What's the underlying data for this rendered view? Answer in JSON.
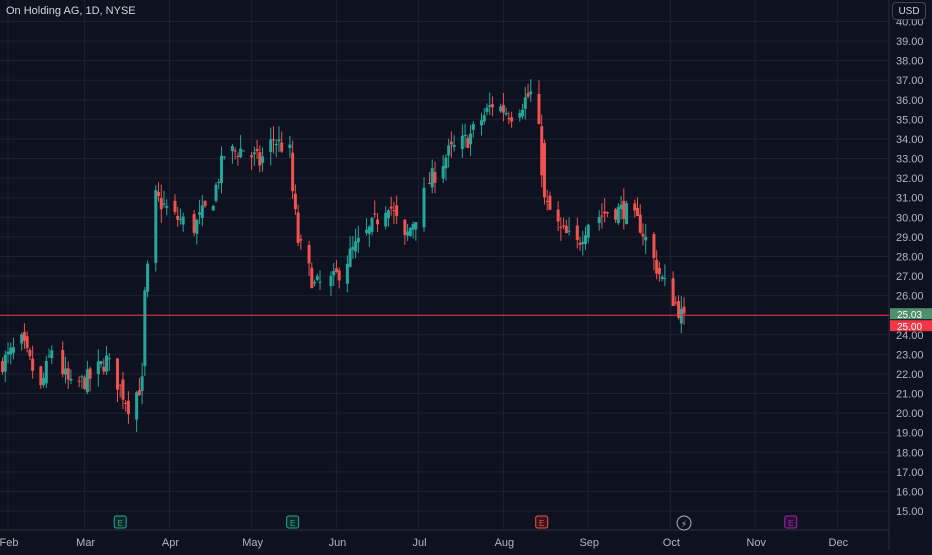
{
  "header": {
    "title": "On Holding AG, 1D, NYSE",
    "currency_button": "USD"
  },
  "chart_data": {
    "type": "candlestick",
    "title": "On Holding AG, 1D, NYSE",
    "currency": "USD",
    "ylim": [
      14.6,
      40.6
    ],
    "y_ticks": [
      "15.00",
      "16.00",
      "17.00",
      "18.00",
      "19.00",
      "20.00",
      "21.00",
      "22.00",
      "23.00",
      "24.00",
      "25.00",
      "26.00",
      "27.00",
      "28.00",
      "29.00",
      "30.00",
      "31.00",
      "32.00",
      "33.00",
      "34.00",
      "35.00",
      "36.00",
      "37.00",
      "38.00",
      "39.00",
      "40.00"
    ],
    "x_months": [
      "Feb",
      "Mar",
      "Apr",
      "May",
      "Jun",
      "Jul",
      "Aug",
      "Sep",
      "Oct",
      "Nov",
      "Dec"
    ],
    "price_lines": [
      {
        "label": "25.03",
        "value": 25.03,
        "color": "#4d8f6f"
      },
      {
        "label": "25.00",
        "value": 25.0,
        "color": "#f23645"
      }
    ],
    "up_color": "#26a69a",
    "down_color": "#ef5350",
    "events": [
      {
        "date": "2023-03-14",
        "type": "earnings",
        "label": "E"
      },
      {
        "date": "2023-05-16",
        "type": "earnings",
        "label": "E"
      },
      {
        "date": "2023-08-15",
        "type": "earnings",
        "label": "E"
      },
      {
        "date": "2023-10-06",
        "type": "dividend",
        "label": "⚡"
      },
      {
        "date": "2023-11-14",
        "type": "earnings",
        "label": "E"
      }
    ],
    "anchors": [
      [
        "2023-01-30",
        22.6
      ],
      [
        "2023-02-06",
        23.6
      ],
      [
        "2023-02-13",
        21.2
      ],
      [
        "2023-02-17",
        23.3
      ],
      [
        "2023-02-24",
        21.3
      ],
      [
        "2023-03-03",
        21.8
      ],
      [
        "2023-03-09",
        22.7
      ],
      [
        "2023-03-14",
        21.3
      ],
      [
        "2023-03-17",
        20.4
      ],
      [
        "2023-03-22",
        21.5
      ],
      [
        "2023-03-23",
        26.0
      ],
      [
        "2023-03-27",
        31.0
      ],
      [
        "2023-04-03",
        30.0
      ],
      [
        "2023-04-10",
        29.5
      ],
      [
        "2023-04-17",
        31.0
      ],
      [
        "2023-04-21",
        33.2
      ],
      [
        "2023-04-28",
        33.5
      ],
      [
        "2023-05-04",
        32.8
      ],
      [
        "2023-05-09",
        34.0
      ],
      [
        "2023-05-15",
        33.3
      ],
      [
        "2023-05-16",
        31.3
      ],
      [
        "2023-05-18",
        28.8
      ],
      [
        "2023-05-24",
        26.5
      ],
      [
        "2023-05-31",
        26.8
      ],
      [
        "2023-06-07",
        28.3
      ],
      [
        "2023-06-13",
        29.3
      ],
      [
        "2023-06-20",
        30.8
      ],
      [
        "2023-06-26",
        28.8
      ],
      [
        "2023-07-05",
        31.8
      ],
      [
        "2023-07-12",
        33.3
      ],
      [
        "2023-07-19",
        34.0
      ],
      [
        "2023-07-24",
        35.0
      ],
      [
        "2023-07-28",
        35.8
      ],
      [
        "2023-08-04",
        35.3
      ],
      [
        "2023-08-11",
        36.3
      ],
      [
        "2023-08-14",
        34.3
      ],
      [
        "2023-08-16",
        30.8
      ],
      [
        "2023-08-22",
        29.3
      ],
      [
        "2023-08-28",
        28.6
      ],
      [
        "2023-09-01",
        29.8
      ],
      [
        "2023-09-08",
        30.3
      ],
      [
        "2023-09-14",
        30.4
      ],
      [
        "2023-09-20",
        29.6
      ],
      [
        "2023-09-25",
        27.8
      ],
      [
        "2023-09-28",
        26.8
      ],
      [
        "2023-10-03",
        25.6
      ],
      [
        "2023-10-06",
        24.7
      ]
    ]
  }
}
